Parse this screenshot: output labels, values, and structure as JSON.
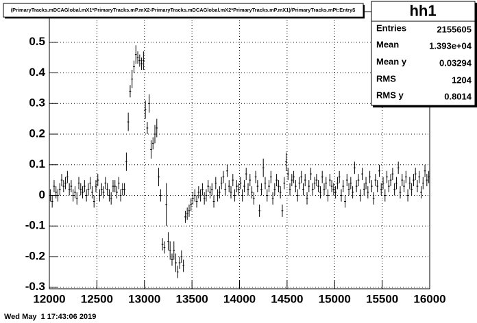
{
  "title": "(PrimaryTracks.mDCAGlobal.mX1*PrimaryTracks.mP.mX2-PrimaryTracks.mDCAGlobal.mX2*PrimaryTracks.mP.mX1)/PrimaryTracks.mPt:Entry$",
  "stats": {
    "name": "hh1",
    "rows": [
      [
        "Entries",
        "2155605"
      ],
      [
        "Mean",
        "1.393e+04"
      ],
      [
        "Mean y",
        "0.03294"
      ],
      [
        "RMS",
        "1204"
      ],
      [
        "RMS y",
        "0.8014"
      ]
    ]
  },
  "footer": "Wed May  1 17:43:06 2019",
  "chart_data": {
    "type": "profile",
    "color": "#000000",
    "grid": true,
    "xlim": [
      12000,
      16000
    ],
    "xticks": [
      12000,
      12500,
      13000,
      13500,
      14000,
      14500,
      15000,
      15500,
      16000
    ],
    "ylim": [
      -0.305,
      0.6
    ],
    "yticks": [
      -0.3,
      -0.2,
      -0.1,
      0,
      0.1,
      0.2,
      0.3,
      0.4,
      0.5
    ],
    "values": [
      0.0,
      -0.02,
      0.03,
      0.01,
      0.0,
      0.02,
      0.05,
      0.03,
      0.04,
      0.06,
      0.02,
      0.03,
      0.0,
      0.01,
      -0.01,
      0.04,
      0.02,
      0.01,
      0.03,
      0.0,
      0.02,
      0.04,
      0.01,
      -0.02,
      0.03,
      0.05,
      0.0,
      0.02,
      0.01,
      0.04,
      0.02,
      0.0,
      -0.01,
      0.03,
      0.03,
      0.01,
      0.04,
      0.0,
      0.02,
      0.02,
      0.11,
      0.24,
      0.34,
      0.38,
      0.42,
      0.46,
      0.45,
      0.44,
      0.43,
      0.44,
      0.28,
      0.22,
      0.3,
      0.15,
      0.17,
      0.2,
      0.22,
      0.06,
      0.0,
      -0.16,
      -0.17,
      -0.03,
      -0.15,
      -0.18,
      -0.21,
      -0.18,
      -0.22,
      -0.25,
      -0.22,
      -0.2,
      -0.23,
      -0.07,
      -0.06,
      -0.05,
      -0.03,
      -0.01,
      0.0,
      -0.02,
      0.01,
      0.0,
      0.02,
      -0.01,
      0.0,
      0.03,
      0.01,
      0.02,
      -0.02,
      0.04,
      0.0,
      0.01,
      0.04,
      0.06,
      0.02,
      0.08,
      0.03,
      0.01,
      0.05,
      0.0,
      0.03,
      0.02,
      0.04,
      0.0,
      0.03,
      0.07,
      0.02,
      0.05,
      0.01,
      -0.01,
      0.06,
      0.03,
      -0.05,
      0.02,
      0.09,
      0.04,
      0.0,
      0.03,
      0.06,
      -0.01,
      0.02,
      0.05,
      0.03,
      0.01,
      -0.05,
      0.04,
      0.11,
      0.07,
      0.02,
      0.05,
      0.06,
      0.03,
      0.0,
      0.04,
      0.06,
      0.02,
      0.05,
      -0.01,
      0.03,
      0.07,
      0.02,
      0.04,
      0.05,
      0.03,
      0.01,
      0.06,
      0.02,
      0.04,
      0.0,
      0.05,
      0.03,
      0.02,
      0.01,
      0.04,
      0.06,
      0.0,
      0.03,
      -0.02,
      0.05,
      0.02,
      0.04,
      0.01,
      0.09,
      0.03,
      0.05,
      0.0,
      0.07,
      0.02,
      0.04,
      0.01,
      0.06,
      0.03,
      -0.01,
      0.05,
      0.03,
      0.08,
      0.02,
      0.04,
      0.0,
      0.06,
      0.03,
      0.05,
      0.07,
      0.02,
      0.04,
      0.09,
      0.01,
      0.05,
      0.03,
      0.06,
      0.0,
      0.04,
      0.02,
      0.05,
      0.07,
      0.03,
      0.06,
      0.01,
      0.04,
      0.08,
      0.05,
      0.06
    ],
    "errors": [
      0.02,
      0.02,
      0.02,
      0.02,
      0.02,
      0.02,
      0.02,
      0.02,
      0.02,
      0.02,
      0.02,
      0.02,
      0.02,
      0.02,
      0.02,
      0.02,
      0.02,
      0.02,
      0.02,
      0.02,
      0.02,
      0.02,
      0.02,
      0.02,
      0.02,
      0.02,
      0.02,
      0.02,
      0.02,
      0.02,
      0.02,
      0.02,
      0.02,
      0.02,
      0.02,
      0.02,
      0.02,
      0.02,
      0.02,
      0.02,
      0.03,
      0.03,
      0.02,
      0.03,
      0.02,
      0.03,
      0.02,
      0.02,
      0.02,
      0.03,
      0.03,
      0.02,
      0.03,
      0.03,
      0.02,
      0.03,
      0.03,
      0.03,
      0.02,
      0.02,
      0.02,
      0.07,
      0.03,
      0.03,
      0.02,
      0.03,
      0.03,
      0.02,
      0.02,
      0.02,
      0.02,
      0.02,
      0.02,
      0.02,
      0.02,
      0.02,
      0.02,
      0.02,
      0.02,
      0.02,
      0.02,
      0.02,
      0.02,
      0.02,
      0.02,
      0.02,
      0.02,
      0.02,
      0.02,
      0.02,
      0.02,
      0.02,
      0.02,
      0.02,
      0.02,
      0.02,
      0.02,
      0.02,
      0.02,
      0.02,
      0.02,
      0.02,
      0.02,
      0.02,
      0.02,
      0.02,
      0.02,
      0.02,
      0.02,
      0.02,
      0.02,
      0.02,
      0.03,
      0.02,
      0.02,
      0.02,
      0.02,
      0.02,
      0.02,
      0.02,
      0.02,
      0.02,
      0.02,
      0.02,
      0.03,
      0.02,
      0.02,
      0.02,
      0.02,
      0.02,
      0.02,
      0.02,
      0.02,
      0.02,
      0.02,
      0.02,
      0.02,
      0.02,
      0.02,
      0.02,
      0.02,
      0.02,
      0.02,
      0.02,
      0.02,
      0.02,
      0.02,
      0.02,
      0.02,
      0.02,
      0.02,
      0.02,
      0.02,
      0.02,
      0.02,
      0.02,
      0.02,
      0.02,
      0.02,
      0.02,
      0.02,
      0.02,
      0.02,
      0.02,
      0.02,
      0.02,
      0.02,
      0.02,
      0.02,
      0.02,
      0.02,
      0.02,
      0.02,
      0.02,
      0.02,
      0.02,
      0.02,
      0.02,
      0.02,
      0.02,
      0.02,
      0.02,
      0.02,
      0.02,
      0.02,
      0.02,
      0.02,
      0.02,
      0.02,
      0.02,
      0.02,
      0.02,
      0.02,
      0.02,
      0.02,
      0.02,
      0.02,
      0.02,
      0.02,
      0.02
    ]
  }
}
